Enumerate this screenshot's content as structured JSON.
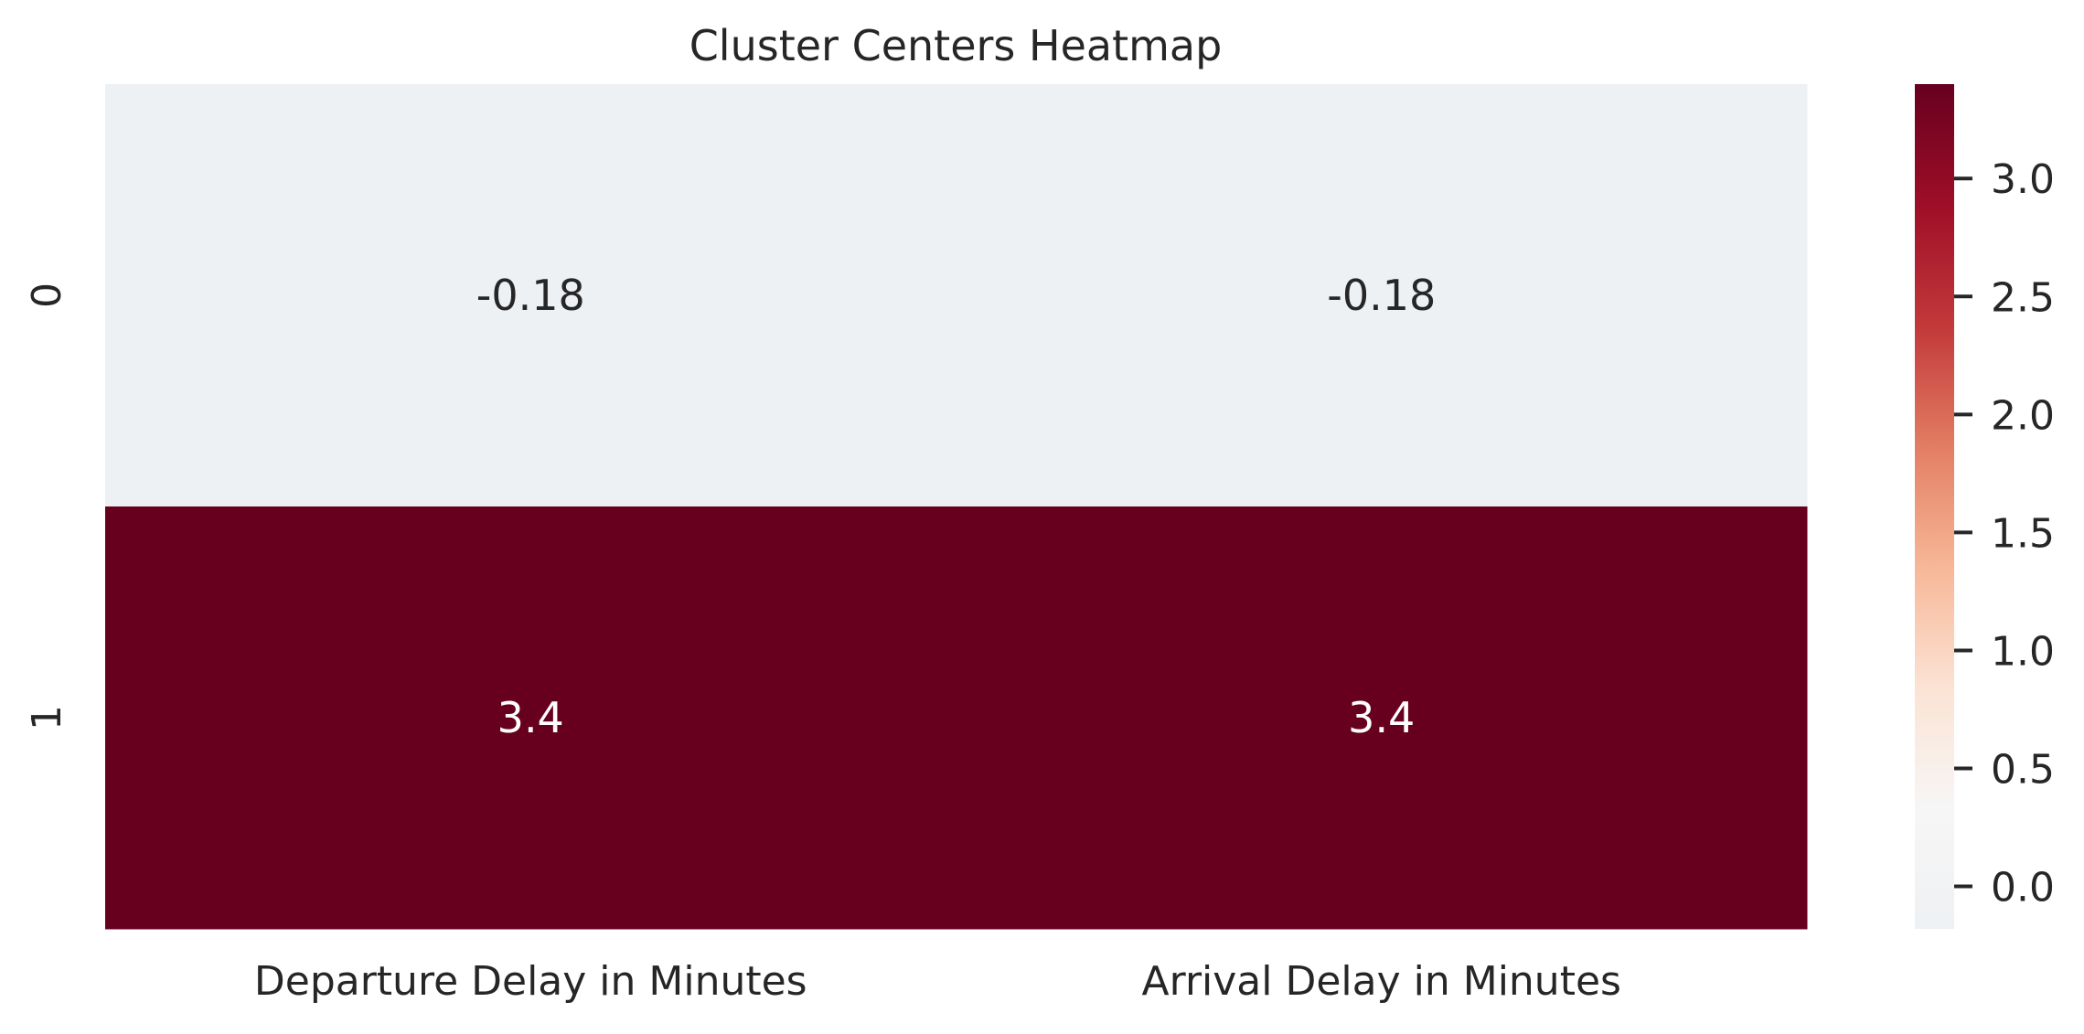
{
  "chart_data": {
    "type": "heatmap",
    "title": "Cluster Centers Heatmap",
    "x_categories": [
      "Departure Delay in Minutes",
      "Arrival Delay in Minutes"
    ],
    "y_categories": [
      "0",
      "1"
    ],
    "values": [
      [
        -0.18,
        -0.18
      ],
      [
        3.4,
        3.4
      ]
    ],
    "cell_labels": [
      [
        "-0.18",
        "-0.18"
      ],
      [
        "3.4",
        "3.4"
      ]
    ],
    "colorbar": {
      "min": -0.18,
      "max": 3.4,
      "ticks": [
        0.0,
        0.5,
        1.0,
        1.5,
        2.0,
        2.5,
        3.0
      ],
      "tick_labels": [
        "0.0",
        "0.5",
        "1.0",
        "1.5",
        "2.0",
        "2.5",
        "3.0"
      ],
      "colormap": "RdBu_r (white-to-dark-red half)",
      "color_stops": [
        "#eef1f4",
        "#f7f6f6",
        "#fbe3d4",
        "#f7b797",
        "#e27d62",
        "#c2383a",
        "#9e0e27",
        "#67001f"
      ]
    },
    "grid": false
  }
}
